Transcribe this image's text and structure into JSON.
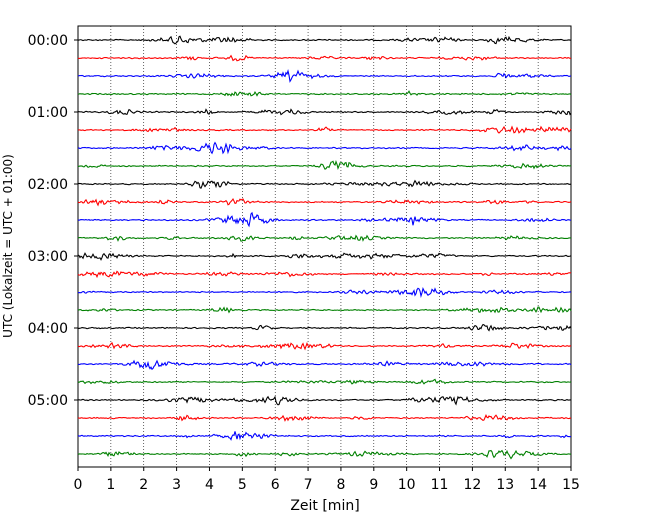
{
  "chart_data": {
    "type": "line",
    "title": "",
    "xlabel": "Zeit  [min]",
    "ylabel": "UTC (Lokalzeit = UTC + 01:00)",
    "xlim": [
      0,
      15
    ],
    "x_ticks": [
      "0",
      "1",
      "2",
      "3",
      "4",
      "5",
      "6",
      "7",
      "8",
      "9",
      "10",
      "11",
      "12",
      "13",
      "14",
      "15"
    ],
    "y_tick_labels": [
      "00:00",
      "01:00",
      "02:00",
      "03:00",
      "04:00",
      "05:00"
    ],
    "minutes_per_trace": 15,
    "trace_count": 24,
    "trace_colors": [
      "#000000",
      "#ff0000",
      "#0000ff",
      "#008000"
    ],
    "grid": "vertical dotted lines at each minute",
    "legend": "none"
  }
}
